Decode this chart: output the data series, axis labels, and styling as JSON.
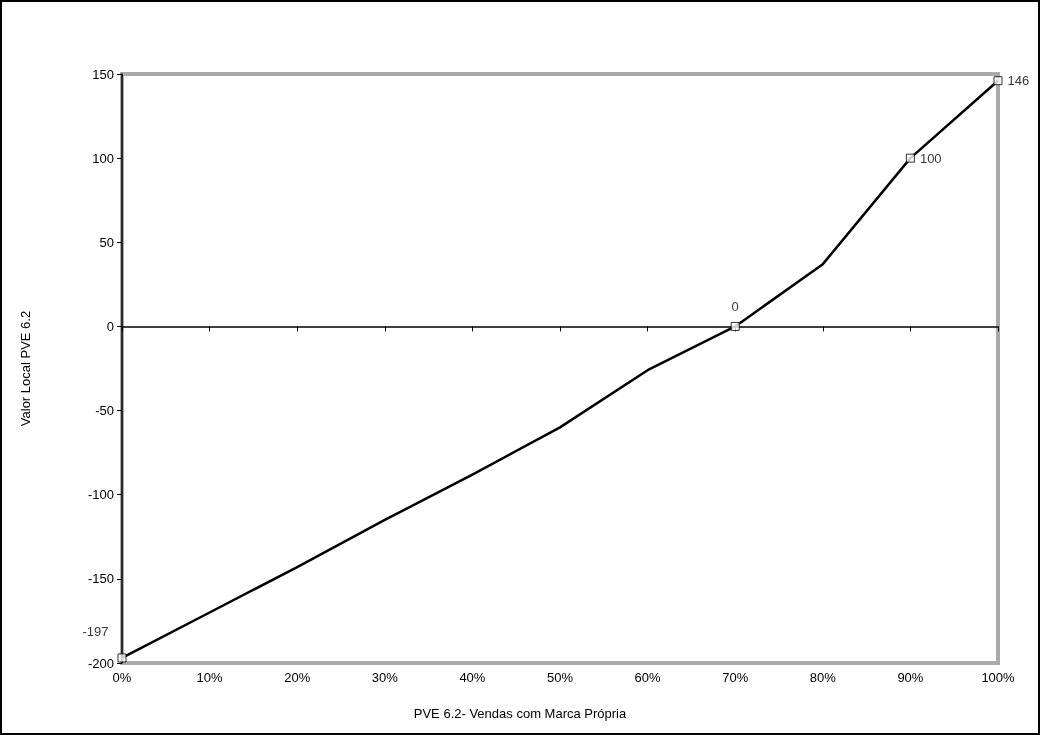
{
  "chart_data": {
    "type": "line",
    "xlabel": "PVE 6.2- Vendas com Marca Própria",
    "ylabel": "Valor Local PVE 6.2",
    "series": [
      {
        "color": "#000000",
        "marker": "none",
        "x": [
          0,
          10,
          20,
          30,
          40,
          50,
          60,
          70,
          80,
          90,
          100
        ],
        "values": [
          -197,
          -170,
          -143,
          -115,
          -88,
          -60,
          -26,
          0,
          37,
          100,
          146
        ]
      },
      {
        "type": "scatter",
        "color": "#000000",
        "marker": "square",
        "x": [
          0,
          70,
          90,
          100
        ],
        "values": [
          -197,
          0,
          100,
          146
        ],
        "value_labels": [
          "-197",
          "0",
          "100",
          "146"
        ]
      }
    ],
    "xlim": [
      0,
      100
    ],
    "xticks": [
      {
        "value": 0,
        "label": "0%"
      },
      {
        "value": 10,
        "label": "10%"
      },
      {
        "value": 20,
        "label": "20%"
      },
      {
        "value": 30,
        "label": "30%"
      },
      {
        "value": 40,
        "label": "40%"
      },
      {
        "value": 50,
        "label": "50%"
      },
      {
        "value": 60,
        "label": "60%"
      },
      {
        "value": 70,
        "label": "70%"
      },
      {
        "value": 80,
        "label": "80%"
      },
      {
        "value": 90,
        "label": "90%"
      },
      {
        "value": 100,
        "label": "100%"
      }
    ],
    "ylim": [
      -200,
      150
    ],
    "yticks": [
      -200,
      -150,
      -100,
      -50,
      0,
      50,
      100,
      150
    ]
  }
}
